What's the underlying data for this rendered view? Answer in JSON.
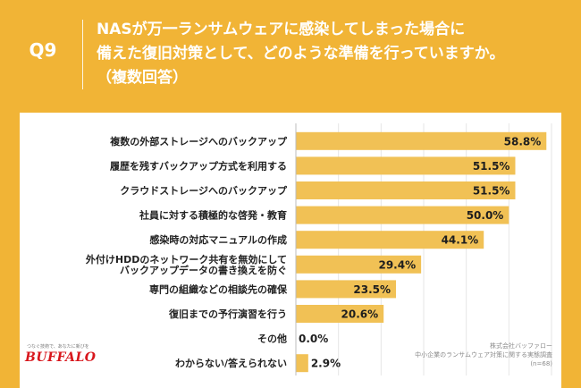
{
  "question_number": "Q9",
  "title_lines": [
    "NASが万一ランサムウェアに感染してしまった場合に",
    "備えた復旧対策として、どのような準備を行っていますか。",
    "（複数回答）"
  ],
  "brand": {
    "tagline": "つなぐ技術で、あなたに新びを",
    "logo": "BUFFALO"
  },
  "source": {
    "company": "株式会社バッファロー",
    "survey": "中小企業のランサムウェア対策に関する実態調査",
    "sample": "(n=68)"
  },
  "colors": {
    "accent": "#f1b436",
    "bar": "#f1c155",
    "logo": "#d8161c"
  },
  "chart_data": {
    "type": "bar",
    "orientation": "horizontal",
    "categories": [
      "複数の外部ストレージへのバックアップ",
      "履歴を残すバックアップ方式を利用する",
      "クラウドストレージへのバックアップ",
      "社員に対する積極的な啓発・教育",
      "感染時の対応マニュアルの作成",
      "外付けHDDのネットワーク共有を無効にして\nバックアップデータの書き換えを防ぐ",
      "専門の組織などの相談先の確保",
      "復旧までの予行演習を行う",
      "その他",
      "わからない/答えられない"
    ],
    "values": [
      58.8,
      51.5,
      51.5,
      50.0,
      44.1,
      29.4,
      23.5,
      20.6,
      0.0,
      2.9
    ],
    "value_labels": [
      "58.8%",
      "51.5%",
      "51.5%",
      "50.0%",
      "44.1%",
      "29.4%",
      "23.5%",
      "20.6%",
      "0.0%",
      "2.9%"
    ],
    "xlim": [
      0,
      60
    ],
    "grid": true
  }
}
